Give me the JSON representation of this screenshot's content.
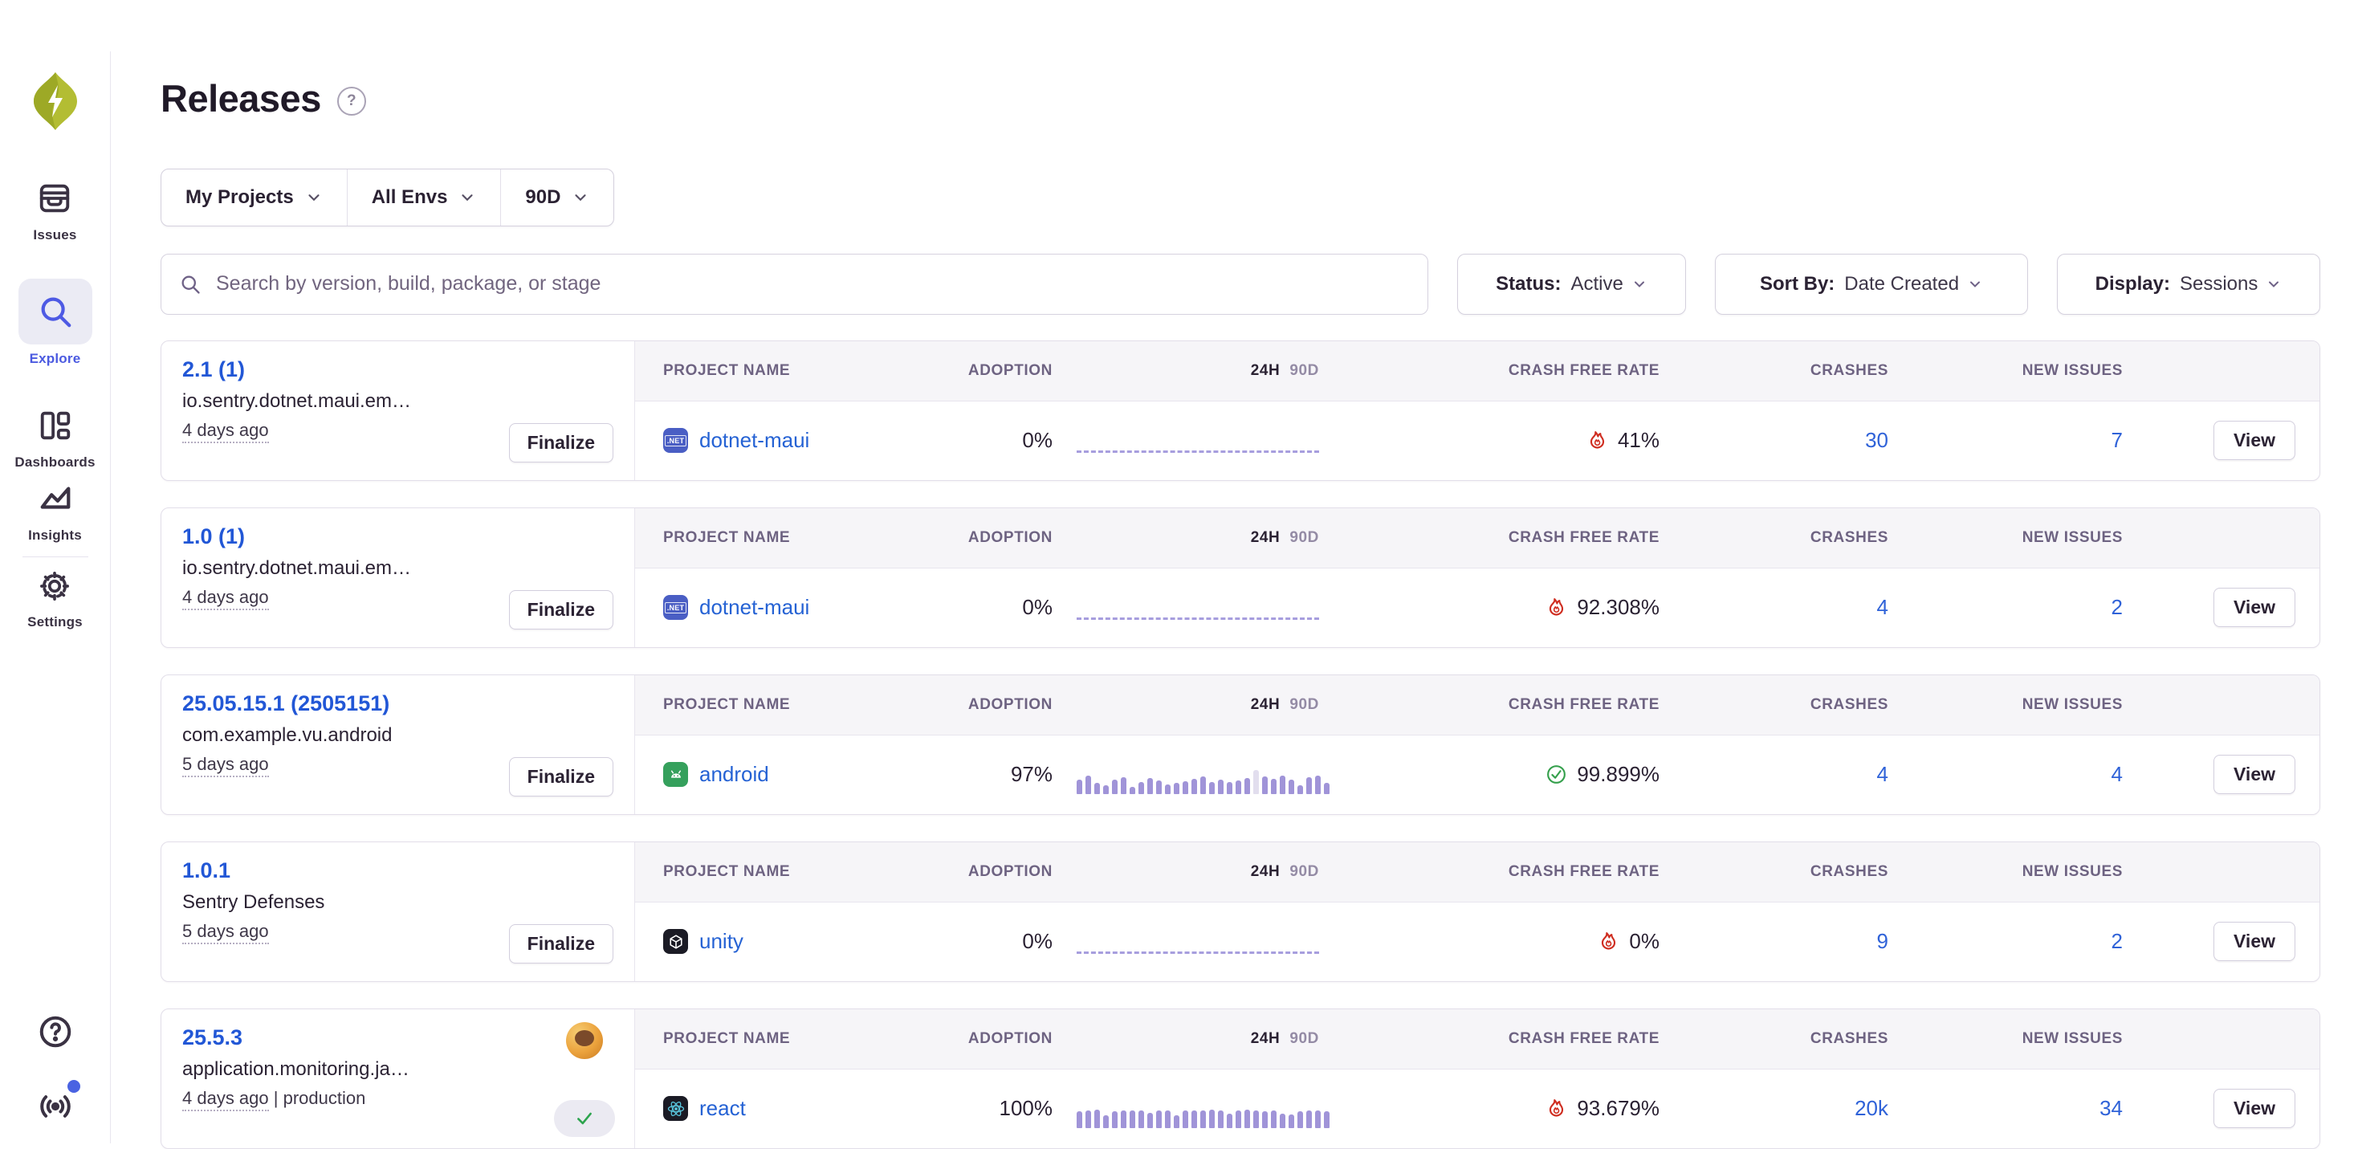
{
  "sidebar": {
    "items": [
      {
        "id": "issues",
        "label": "Issues",
        "icon": "issues-icon",
        "active": false
      },
      {
        "id": "explore",
        "label": "Explore",
        "icon": "search-icon",
        "active": true
      },
      {
        "id": "dashboards",
        "label": "Dashboards",
        "icon": "dashboards-icon",
        "active": false
      },
      {
        "id": "insights",
        "label": "Insights",
        "icon": "insights-icon",
        "active": false
      },
      {
        "id": "settings",
        "label": "Settings",
        "icon": "gear-icon",
        "active": false
      }
    ],
    "bottom_icons": [
      "help-icon",
      "broadcast-icon"
    ],
    "has_notification_dot": true
  },
  "header": {
    "title": "Releases",
    "help_glyph": "?"
  },
  "filters": {
    "projects": "My Projects",
    "envs": "All Envs",
    "period": "90D"
  },
  "search": {
    "placeholder": "Search by version, build, package, or stage"
  },
  "controls": {
    "status_label": "Status:",
    "status_value": "Active",
    "sort_label": "Sort By:",
    "sort_value": "Date Created",
    "display_label": "Display:",
    "display_value": "Sessions"
  },
  "columns": {
    "project": "PROJECT NAME",
    "adoption": "ADOPTION",
    "h24": "24H",
    "d90": "90D",
    "crash_free": "CRASH FREE RATE",
    "crashes": "CRASHES",
    "new_issues": "NEW ISSUES"
  },
  "colors": {
    "link_blue": "#2562d4",
    "fire_red": "#cf2d20",
    "ok_green": "#2da44e",
    "bar_purple": "#a094d8",
    "logo_lime": "#b0bc2e",
    "active_nav": "#4b5ae0"
  },
  "releases": [
    {
      "version": "2.1 (1)",
      "package": "io.sentry.dotnet.maui.em…",
      "age": "4 days ago",
      "age_suffix": "",
      "action": "finalize",
      "action_label": "Finalize",
      "project": {
        "name": "dotnet-maui",
        "icon": "dotnet"
      },
      "adoption": "0%",
      "chart": {
        "type": "dashed"
      },
      "crash_free": {
        "value": "41%",
        "status": "fire",
        "icon": "fire-icon"
      },
      "crashes": "30",
      "new_issues": "7",
      "view_label": "View"
    },
    {
      "version": "1.0 (1)",
      "package": "io.sentry.dotnet.maui.em…",
      "age": "4 days ago",
      "age_suffix": "",
      "action": "finalize",
      "action_label": "Finalize",
      "project": {
        "name": "dotnet-maui",
        "icon": "dotnet"
      },
      "adoption": "0%",
      "chart": {
        "type": "dashed"
      },
      "crash_free": {
        "value": "92.308%",
        "status": "fire",
        "icon": "fire-icon"
      },
      "crashes": "4",
      "new_issues": "2",
      "view_label": "View"
    },
    {
      "version": "25.05.15.1 (2505151)",
      "package": "com.example.vu.android",
      "age": "5 days ago",
      "age_suffix": "",
      "action": "finalize",
      "action_label": "Finalize",
      "project": {
        "name": "android",
        "icon": "android"
      },
      "adoption": "97%",
      "chart": {
        "type": "bars",
        "light_index": 20,
        "heights": [
          18,
          23,
          14,
          11,
          18,
          21,
          9,
          15,
          20,
          17,
          12,
          14,
          16,
          19,
          22,
          15,
          18,
          15,
          17,
          20,
          30,
          22,
          19,
          23,
          18,
          11,
          21,
          23,
          14
        ]
      },
      "crash_free": {
        "value": "99.899%",
        "status": "ok",
        "icon": "check-circle-icon"
      },
      "crashes": "4",
      "new_issues": "4",
      "view_label": "View"
    },
    {
      "version": "1.0.1",
      "package": "Sentry Defenses",
      "age": "5 days ago",
      "age_suffix": "",
      "action": "finalize",
      "action_label": "Finalize",
      "project": {
        "name": "unity",
        "icon": "unity"
      },
      "adoption": "0%",
      "chart": {
        "type": "dashed"
      },
      "crash_free": {
        "value": "0%",
        "status": "fire",
        "icon": "fire-icon"
      },
      "crashes": "9",
      "new_issues": "2",
      "view_label": "View"
    },
    {
      "version": "25.5.3",
      "package": "application.monitoring.ja…",
      "age": "4 days ago",
      "age_suffix": " | production",
      "action": "avatar",
      "action_label": "",
      "project": {
        "name": "react",
        "icon": "react"
      },
      "adoption": "100%",
      "chart": {
        "type": "bars",
        "heights": [
          21,
          22,
          23,
          16,
          21,
          22,
          22,
          22,
          19,
          22,
          22,
          16,
          22,
          22,
          22,
          23,
          22,
          18,
          22,
          23,
          22,
          21,
          22,
          18,
          17,
          21,
          22,
          22,
          21
        ]
      },
      "crash_free": {
        "value": "93.679%",
        "status": "fire",
        "icon": "fire-icon"
      },
      "crashes": "20k",
      "new_issues": "34",
      "view_label": "View"
    }
  ]
}
